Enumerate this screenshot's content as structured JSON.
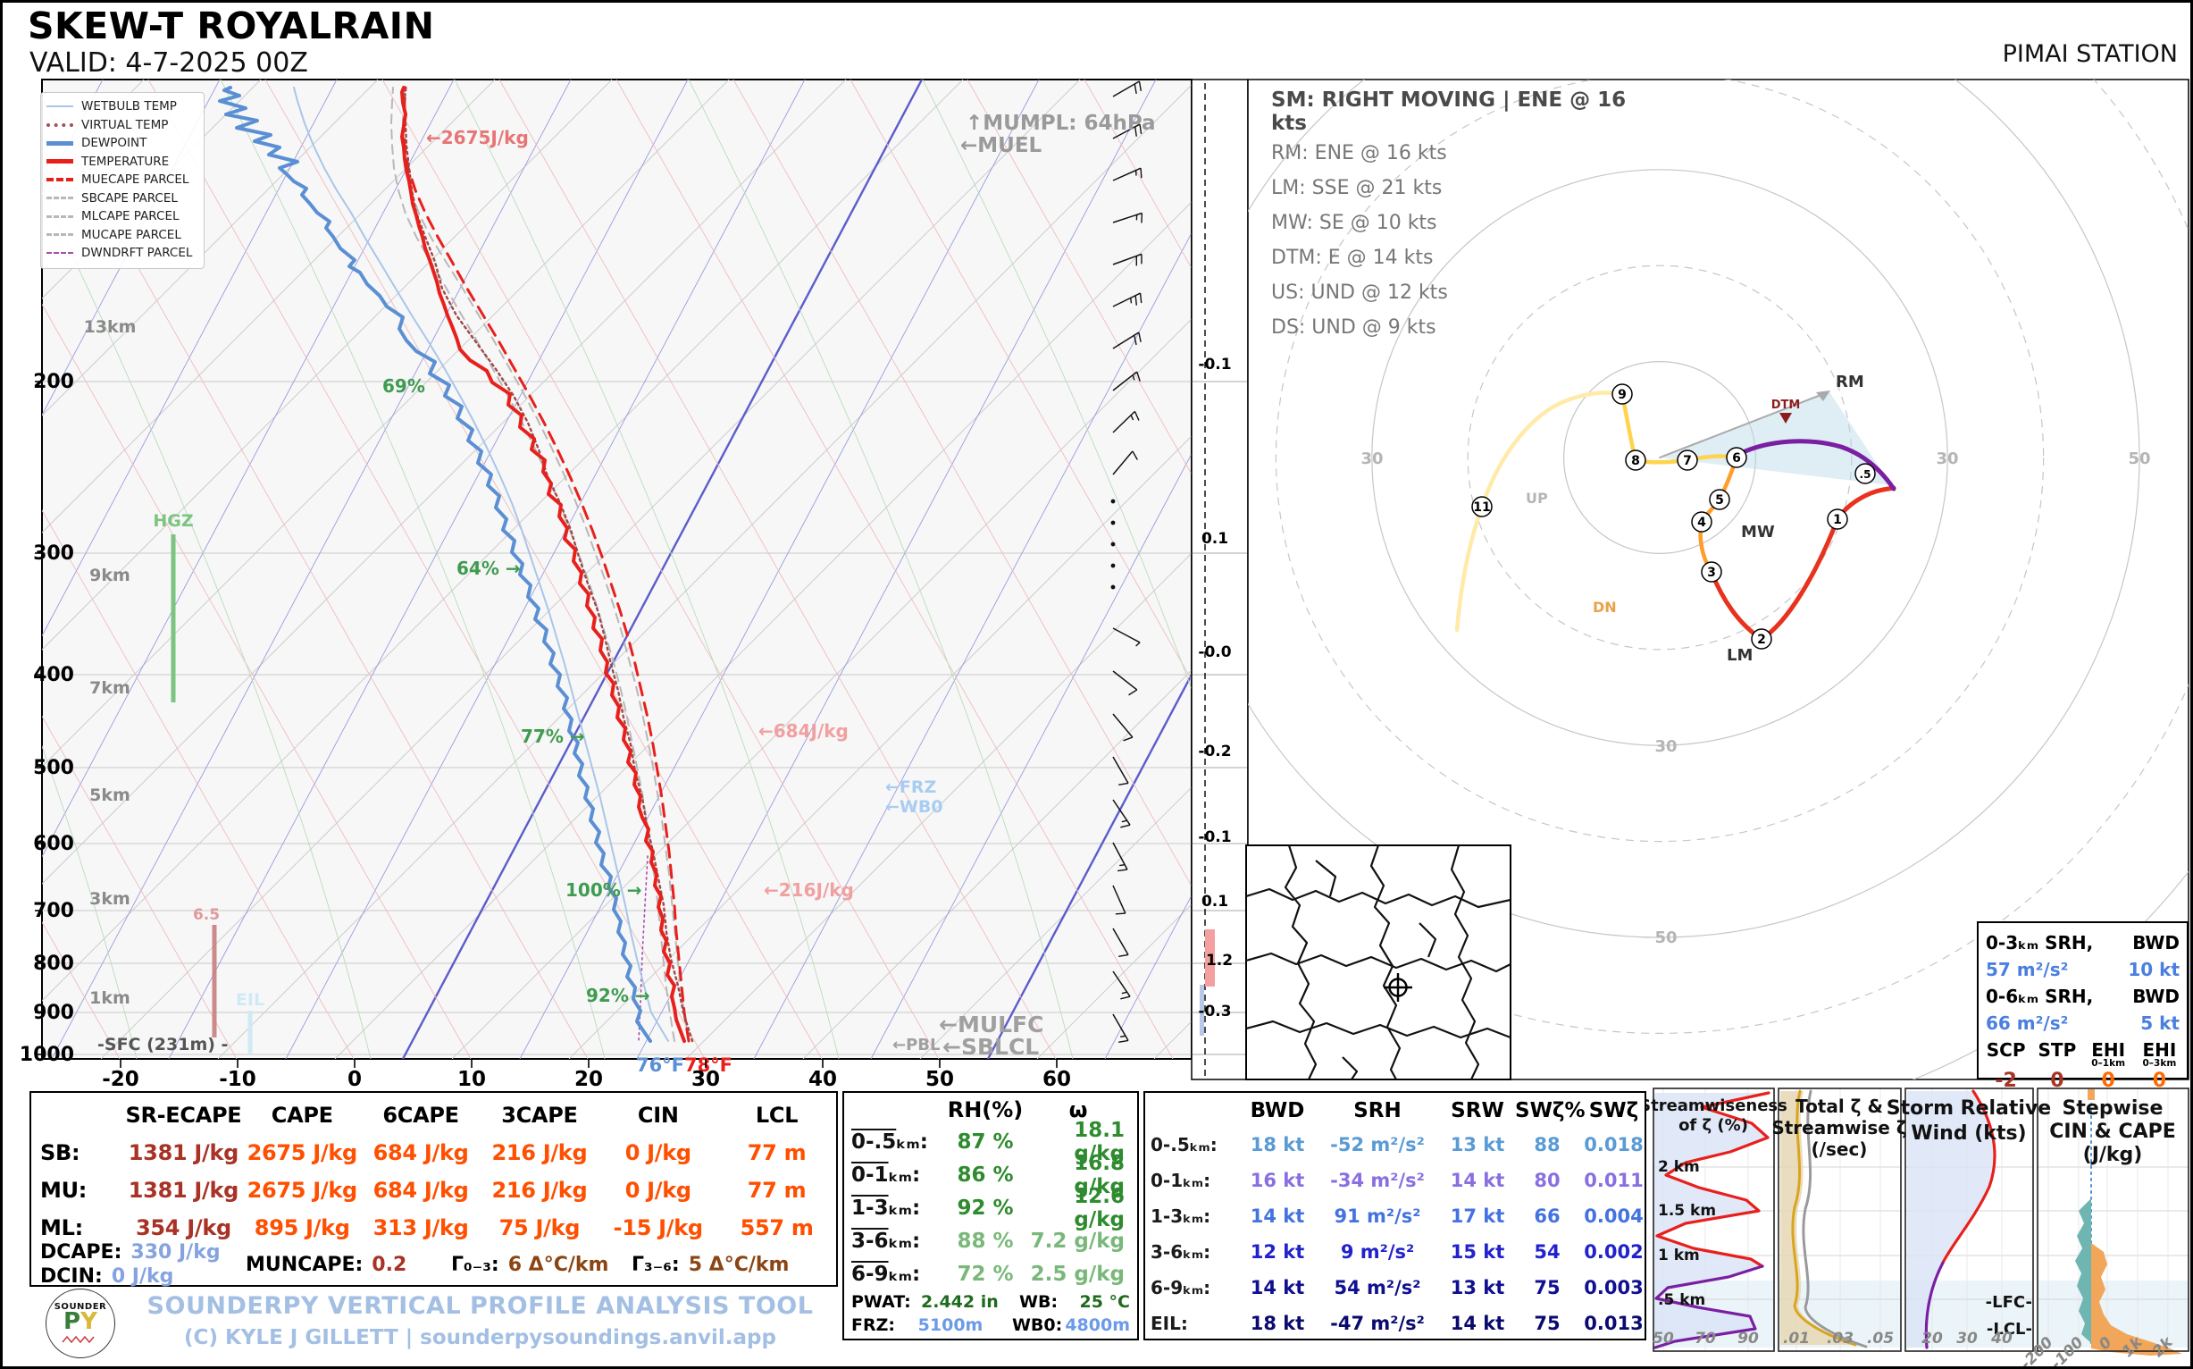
{
  "colors": {
    "temperature": "#e8201c",
    "dewpoint": "#5b8fd4",
    "wetbulb": "#a9c6e8",
    "virtual_temp": "#9e4a48",
    "muecape_parcel": "#e8201c",
    "cape_parcel_gray": "#b8b8b8",
    "dwndrft_parcel": "#a64ca6",
    "rh_annotation": "#3f9b4f",
    "cape_annotation": "#e87575",
    "level_annotation": "#9a9a9a",
    "frz_annotation": "#a8cdf2",
    "table_orange": "#ff4f00",
    "table_brick": "#a93226",
    "table_blue": "#85a3e0",
    "table_green": "#2e8b2e",
    "table_brown": "#8b4513",
    "footer_blue": "#a3bfe3",
    "ehi_orange": "#ff6a00",
    "srh_value_blue": "#4a7fe0"
  },
  "header": {
    "title": "SKEW-T ROYALRAIN",
    "valid": "VALID: 4-7-2025 00Z",
    "station": "PIMAI STATION"
  },
  "legend": {
    "items": [
      "WETBULB TEMP",
      "VIRTUAL TEMP",
      "DEWPOINT",
      "TEMPERATURE",
      "MUECAPE PARCEL",
      "SBCAPE PARCEL",
      "MLCAPE PARCEL",
      "MUCAPE PARCEL",
      "DWNDRFT PARCEL"
    ]
  },
  "skewt": {
    "pressure_labels": [
      "200",
      "300",
      "400",
      "500",
      "600",
      "700",
      "800",
      "900",
      "1000"
    ],
    "height_labels": [
      "13km",
      "9km",
      "7km",
      "5km",
      "3km",
      "1km"
    ],
    "temp_labels": [
      "-20",
      "-10",
      "0",
      "10",
      "20",
      "30",
      "40",
      "50",
      "60"
    ],
    "omega_labels": [
      "-0.1",
      "0.1",
      "-0.0",
      "-0.2",
      "-0.1",
      "0.1",
      "1.2",
      "-0.3"
    ],
    "annotations": {
      "mumpl": "↑MUMPL: 64hPa",
      "muel": "←MUEL",
      "rh_69": "69%",
      "rh_64": "64% →",
      "rh_77": "77% →",
      "rh_100": "100% →",
      "rh_92": "92% →",
      "cape_2675": "←2675J/kg",
      "cape_684": "←684J/kg",
      "cape_216": "←216J/kg",
      "frz": "←FRZ",
      "wb0": "←WB0",
      "hgz": "HGZ",
      "eil": "EIL",
      "dgz": "6.5",
      "sfc": "-SFC (231m) -",
      "pbl": "←PBL",
      "mulfc": "←MULFC",
      "sblcl": "←SBLCL",
      "sfc_dew_f": "76°F",
      "sfc_temp_f": "78°F"
    }
  },
  "hodograph": {
    "sm_title": "SM: RIGHT MOVING | ENE @ 16 kts",
    "motion_lines": [
      "RM: ENE @ 16 kts",
      "LM: SSE @ 21 kts",
      "MW: SE @ 10 kts",
      "DTM: E @ 14 kts",
      "US: UND @ 12 kts",
      "DS: UND @ 9 kts"
    ],
    "ring_labels": [
      "30",
      "30",
      "50",
      "30",
      "50"
    ],
    "point_labels": {
      "rm": "RM",
      "lm": "LM",
      "mw": "MW",
      "dtm": "DTM",
      "up": "UP",
      "dn": "DN"
    },
    "height_markers": [
      ".5",
      "1",
      "2",
      "3",
      "4",
      "5",
      "6",
      "7",
      "8",
      "9",
      "11"
    ]
  },
  "srh_box": {
    "r1_label": "0-3ₖₘ SRH,",
    "r1_label2": "BWD",
    "r1_srh": "57 m²/s²",
    "r1_bwd": "10 kt",
    "r2_label": "0-6ₖₘ SRH,",
    "r2_label2": "BWD",
    "r2_srh": "66 m²/s²",
    "r2_bwd": "5 kt",
    "h_scp": "SCP",
    "h_stp": "STP",
    "h_ehi1": "EHI",
    "h_ehi3": "EHI",
    "sub_ehi1": "0–1km",
    "sub_ehi3": "0–3km",
    "scp": "-2",
    "stp": "0",
    "ehi1": "0",
    "ehi3": "0"
  },
  "thermo_table": {
    "headers": [
      "SR-ECAPE",
      "CAPE",
      "6CAPE",
      "3CAPE",
      "CIN",
      "LCL"
    ],
    "rows": [
      {
        "label": "SB:",
        "srecape": "1381 J/kg",
        "cape": "2675 J/kg",
        "cape6": "684 J/kg",
        "cape3": "216 J/kg",
        "cin": "0 J/kg",
        "lcl": "77 m"
      },
      {
        "label": "MU:",
        "srecape": "1381 J/kg",
        "cape": "2675 J/kg",
        "cape6": "684 J/kg",
        "cape3": "216 J/kg",
        "cin": "0 J/kg",
        "lcl": "77 m"
      },
      {
        "label": "ML:",
        "srecape": "354 J/kg",
        "cape": "895 J/kg",
        "cape6": "313 J/kg",
        "cape3": "75 J/kg",
        "cin": "-15 J/kg",
        "lcl": "557 m"
      }
    ],
    "dcape_label": "DCAPE:",
    "dcape": "330 J/kg",
    "dcin_label": "DCIN:",
    "dcin": "0 J/kg",
    "muncape_label": "MUNCAPE:",
    "muncape": "0.2",
    "lr03_label": "Γ₀₋₃:",
    "lr03": "6 Δ°C/km",
    "lr36_label": "Γ₃₋₆:",
    "lr36": "5 Δ°C/km"
  },
  "moisture_table": {
    "h_rh": "RH(%)",
    "h_omega": "ω",
    "rows": [
      {
        "layer": "0-.5",
        "rest": "ₖₘ:",
        "rh": "87 %",
        "mix": "18.1 g/kg"
      },
      {
        "layer": "0-1",
        "rest": "ₖₘ:",
        "rh": "86 %",
        "mix": "16.8 g/kg"
      },
      {
        "layer": "1-3",
        "rest": "ₖₘ:",
        "rh": "92 %",
        "mix": "12.6 g/kg"
      },
      {
        "layer": "3-6",
        "rest": "ₖₘ:",
        "rh": "88 %",
        "mix": "7.2 g/kg"
      },
      {
        "layer": "6-9",
        "rest": "ₖₘ:",
        "rh": "72 %",
        "mix": "2.5 g/kg"
      }
    ],
    "pwat_label": "PWAT:",
    "pwat": "2.442 in",
    "wb_label": "WB:",
    "wb": "25 °C",
    "frz_label": "FRZ:",
    "frz": "5100m",
    "wb0_label": "WB0:",
    "wb0": "4800m"
  },
  "shear_table": {
    "headers": [
      "BWD",
      "SRH",
      "SRW",
      "SWζ%",
      "SWζ"
    ],
    "rows": [
      {
        "label": "0-.5ₖₘ:",
        "bwd": "18 kt",
        "srh": "-52 m²/s²",
        "srw": "13 kt",
        "swpct": "88",
        "swz": "0.018",
        "color": "#5b9bd5"
      },
      {
        "label": "0-1ₖₘ:",
        "bwd": "16 kt",
        "srh": "-34 m²/s²",
        "srw": "14 kt",
        "swpct": "80",
        "swz": "0.011",
        "color": "#8a6fe0"
      },
      {
        "label": "1-3ₖₘ:",
        "bwd": "14 kt",
        "srh": "91 m²/s²",
        "srw": "17 kt",
        "swpct": "66",
        "swz": "0.004",
        "color": "#4472e0"
      },
      {
        "label": "3-6ₖₘ:",
        "bwd": "12 kt",
        "srh": "9 m²/s²",
        "srw": "15 kt",
        "swpct": "54",
        "swz": "0.002",
        "color": "#2222cc"
      },
      {
        "label": "6-9ₖₘ:",
        "bwd": "14 kt",
        "srh": "54 m²/s²",
        "srw": "13 kt",
        "swpct": "75",
        "swz": "0.003",
        "color": "#101090"
      },
      {
        "label": "EIL:",
        "bwd": "18 kt",
        "srh": "-47 m²/s²",
        "srw": "14 kt",
        "swpct": "75",
        "swz": "0.013",
        "color": "#0a0a70"
      }
    ]
  },
  "mini_plots": {
    "p1": {
      "title_l1": "Streamwiseness",
      "title_l2": "of ζ (%)",
      "y_labels": [
        "2 km",
        "1.5 km",
        "1 km",
        ".5 km"
      ],
      "x_ticks": [
        "50",
        "70",
        "90"
      ]
    },
    "p2": {
      "title_l1": "Total ζ &",
      "title_l2": "Streamwise ζ",
      "title_l3": "(/sec)",
      "x_ticks": [
        ".01",
        ".03",
        ".05"
      ]
    },
    "p3": {
      "title_l1": "Storm Relative",
      "title_l2": "Wind (kts)",
      "x_ticks": [
        "20",
        "30",
        "40"
      ]
    },
    "p4": {
      "title_l1": "Stepwise",
      "title_l2": "CIN & CAPE",
      "title_l3": "(J/kg)",
      "x_ticks": [
        "-200",
        "-100",
        "0",
        "1k",
        "2k"
      ],
      "lfc": "-LFC-",
      "lcl": "-LCL-"
    }
  },
  "footer": {
    "line1": "SOUNDERPY VERTICAL PROFILE ANALYSIS TOOL",
    "line2": "(C) KYLE J GILLETT | sounderpysoundings.anvil.app",
    "logo_top": "SOUNDER",
    "logo_p": "P",
    "logo_y": "Y"
  },
  "chart_data": {
    "type": "skewt-sounding-composite",
    "estimated": true,
    "skewt_profile": {
      "pressure_hpa": [
        1000,
        925,
        850,
        700,
        600,
        500,
        400,
        300,
        250,
        200,
        150
      ],
      "temperature_c": [
        25.6,
        22,
        19,
        12,
        5,
        -3,
        -13,
        -27,
        -36,
        -46,
        -58
      ],
      "dewpoint_c": [
        24.4,
        21,
        18,
        11,
        3,
        -6,
        -17,
        -34,
        -47,
        -62,
        -75
      ],
      "surface_temp_f": 78,
      "surface_dewpoint_f": 76,
      "mumpl_hpa": 64
    },
    "hodograph_kt": {
      "heights_km": [
        0.5,
        1,
        2,
        3,
        4,
        5,
        6,
        7,
        8,
        9,
        11
      ],
      "u": [
        21,
        18,
        11,
        5,
        4,
        6,
        8,
        3,
        -3,
        -4,
        -19
      ],
      "v": [
        -2,
        -6,
        -19,
        -12,
        -7,
        -4,
        0,
        0,
        0,
        7,
        -5
      ]
    },
    "indices": {
      "sb_cape_jkg": 2675,
      "mu_cape_jkg": 2675,
      "ml_cape_jkg": 895,
      "sb_cin_jkg": 0,
      "ml_cin_jkg": -15,
      "sb_lcl_m": 77,
      "ml_lcl_m": 557,
      "dcape_jkg": 330,
      "dcin_jkg": 0,
      "muncape": 0.2,
      "pwat_in": 2.442,
      "frz_m": 5100,
      "wb0_m": 4800,
      "wb_c": 25,
      "srh_0_3_m2s2": 57,
      "bwd_0_3_kt": 10,
      "srh_0_6_m2s2": 66,
      "bwd_0_6_kt": 5,
      "scp": -2,
      "stp": 0,
      "ehi_0_1": 0,
      "ehi_0_3": 0
    }
  }
}
